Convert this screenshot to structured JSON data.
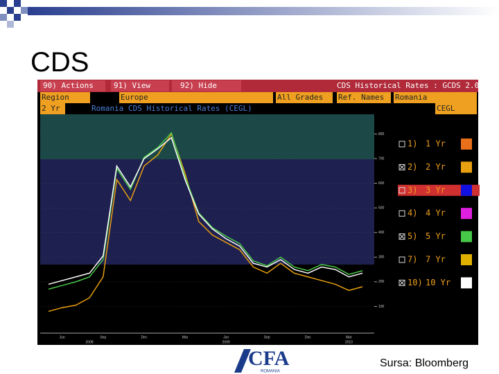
{
  "slide": {
    "title": "CDS",
    "source": "Sursa: Bloomberg",
    "logo": "CFA",
    "logo_sub": "ROMANIA"
  },
  "terminal": {
    "menu": [
      "90) Actions",
      "91) View",
      "92) Hide"
    ],
    "screen_title": "CDS Historical Rates : GCDS 2.0",
    "fields": [
      "Region",
      "Europe",
      "All Grades",
      "Ref. Names",
      "Romania"
    ],
    "tenor": "2 Yr",
    "ticker": "CEGL"
  },
  "chart_data": {
    "type": "line",
    "title": "Romania CDS Historical Rates (CEGL)",
    "categories": [
      null,
      "Jun",
      null,
      null,
      "Sep",
      null,
      null,
      "Dec",
      null,
      null,
      "Mar",
      null,
      null,
      "Jun",
      null,
      null,
      "Sep",
      null,
      null,
      "Dec",
      null,
      null,
      "Mar",
      null
    ],
    "x_years": [
      null,
      null,
      null,
      "2008",
      null,
      null,
      null,
      null,
      null,
      null,
      null,
      null,
      null,
      "2009",
      null,
      null,
      null,
      null,
      null,
      null,
      null,
      null,
      "2010",
      null
    ],
    "ylim": [
      0,
      880
    ],
    "yticks": [
      100,
      200,
      300,
      400,
      500,
      600,
      700,
      800
    ],
    "series": [
      {
        "number": "1)",
        "name": "1 Yr",
        "color": "#e8701a",
        "checked": false
      },
      {
        "number": "2)",
        "name": "2 Yr",
        "color": "#e8a010",
        "checked": true,
        "values": [
          80,
          95,
          105,
          135,
          220,
          615,
          530,
          670,
          715,
          800,
          640,
          445,
          390,
          360,
          330,
          260,
          235,
          275,
          235,
          220,
          205,
          190,
          165,
          180
        ]
      },
      {
        "number": "3)",
        "name": "3 Yr",
        "color": "#1010e0",
        "checked": false,
        "highlight": true
      },
      {
        "number": "4)",
        "name": "4 Yr",
        "color": "#e020e0",
        "checked": false
      },
      {
        "number": "5)",
        "name": "5 Yr",
        "color": "#48c848",
        "checked": true,
        "values": [
          170,
          185,
          200,
          220,
          290,
          660,
          575,
          705,
          745,
          805,
          625,
          480,
          420,
          385,
          355,
          285,
          265,
          300,
          260,
          245,
          270,
          260,
          230,
          245
        ]
      },
      {
        "number": "7)",
        "name": "7 Yr",
        "color": "#e0b000",
        "checked": false
      },
      {
        "number": "10)",
        "name": "10 Yr",
        "color": "#ffffff",
        "checked": true,
        "values": [
          190,
          205,
          220,
          235,
          305,
          670,
          585,
          700,
          740,
          785,
          615,
          475,
          415,
          375,
          345,
          275,
          260,
          290,
          250,
          235,
          260,
          250,
          220,
          235
        ]
      }
    ]
  }
}
